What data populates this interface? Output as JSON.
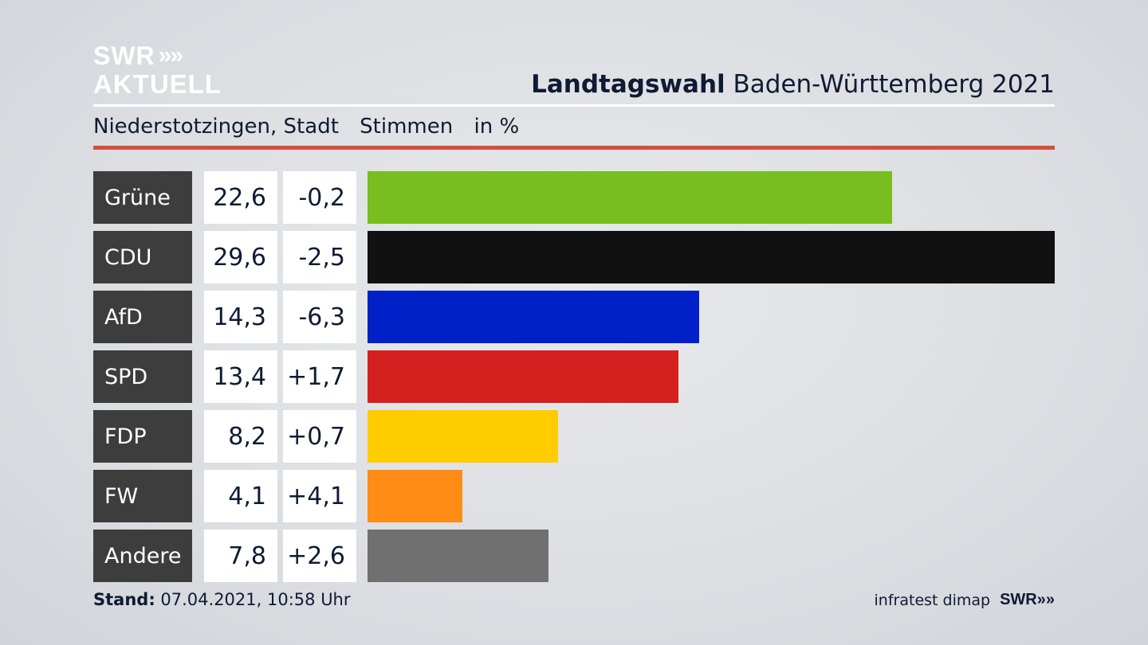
{
  "header": {
    "logo_line1": "SWR",
    "logo_chevrons": "»",
    "logo_line2": "AKTUELL",
    "title_bold": "Landtagswahl",
    "title_rest": "Baden-Württemberg 2021"
  },
  "subheader": {
    "place": "Niederstotzingen, Stadt",
    "measure": "Stimmen",
    "unit": "in %"
  },
  "chart_data": {
    "type": "bar",
    "orientation": "horizontal",
    "categories": [
      "Grüne",
      "CDU",
      "AfD",
      "SPD",
      "FDP",
      "FW",
      "Andere"
    ],
    "series": [
      {
        "name": "Stimmen",
        "values": [
          22.6,
          29.6,
          14.3,
          13.4,
          8.2,
          4.1,
          7.8
        ]
      }
    ],
    "value_labels": [
      "22,6",
      "29,6",
      "14,3",
      "13,4",
      "8,2",
      "4,1",
      "7,8"
    ],
    "change_labels": [
      "-0,2",
      "-2,5",
      "-6,3",
      "+1,7",
      "+0,7",
      "+4,1",
      "+2,6"
    ],
    "changes": [
      -0.2,
      -2.5,
      -6.3,
      1.7,
      0.7,
      4.1,
      2.6
    ],
    "colors": [
      "#78be1e",
      "#111111",
      "#0021c8",
      "#d52020",
      "#ffcc00",
      "#ff8c15",
      "#707070"
    ],
    "xlim": [
      0,
      29.6
    ]
  },
  "footer": {
    "stand_label": "Stand:",
    "stand_value": "07.04.2021, 10:58 Uhr",
    "source": "infratest dimap",
    "brand": "SWR",
    "brand_chevrons": "»"
  }
}
